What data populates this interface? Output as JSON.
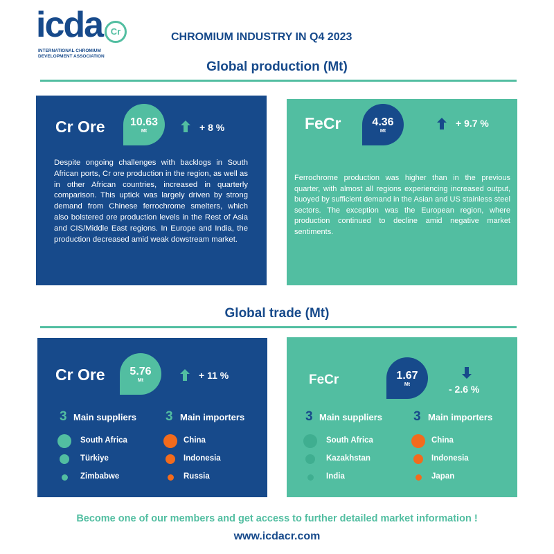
{
  "header": {
    "logo_text": "icda",
    "logo_badge": "Cr",
    "logo_caption_1": "INTERNATIONAL CHROMIUM",
    "logo_caption_2": "DEVELOPMENT ASSOCIATION",
    "title": "CHROMIUM INDUSTRY IN Q4 2023"
  },
  "production": {
    "heading": "Global production (Mt)",
    "cards": [
      {
        "name": "Cr Ore",
        "value": "10.63",
        "unit": "Mt",
        "change": "+ 8 %",
        "text": "Despite ongoing challenges with backlogs in South African ports, Cr ore production in the region, as well as in other African countries, increased in quarterly comparison. This uptick was largely driven by strong demand from Chinese ferrochrome smelters, which also bolstered ore production levels in the Rest of Asia and CIS/Middle East regions. In Europe and India, the production decreased amid weak dowstream market."
      },
      {
        "name": "FeCr",
        "value": "4.36",
        "unit": "Mt",
        "change": "+ 9.7 %",
        "text": "Ferrochrome production was higher than in the previous quarter, with almost all regions experiencing increased output, buoyed by sufficient demand in the Asian and US stainless steel sectors. The exception was the European region, where production continued to decline amid negative market sentiments."
      }
    ]
  },
  "trade": {
    "heading": "Global trade (Mt)",
    "cards": [
      {
        "name": "Cr Ore",
        "value": "5.76",
        "unit": "Mt",
        "change": "+ 11 %",
        "suppliers_count": "3",
        "suppliers_label": "Main suppliers",
        "importers_count": "3",
        "importers_label": "Main importers",
        "suppliers": [
          "South Africa",
          "Türkiye",
          "Zimbabwe"
        ],
        "importers": [
          "China",
          "Indonesia",
          "Russia"
        ]
      },
      {
        "name": "FeCr",
        "value": "1.67",
        "unit": "Mt",
        "change": "- 2.6 %",
        "suppliers_count": "3",
        "suppliers_label": "Main suppliers",
        "importers_count": "3",
        "importers_label": "Main importers",
        "suppliers": [
          "South Africa",
          "Kazakhstan",
          "India"
        ],
        "importers": [
          "China",
          "Indonesia",
          "Japan"
        ]
      }
    ]
  },
  "footer": {
    "cta": "Become one of our members and get access to further detailed market information !",
    "url": "www.icdacr.com"
  }
}
